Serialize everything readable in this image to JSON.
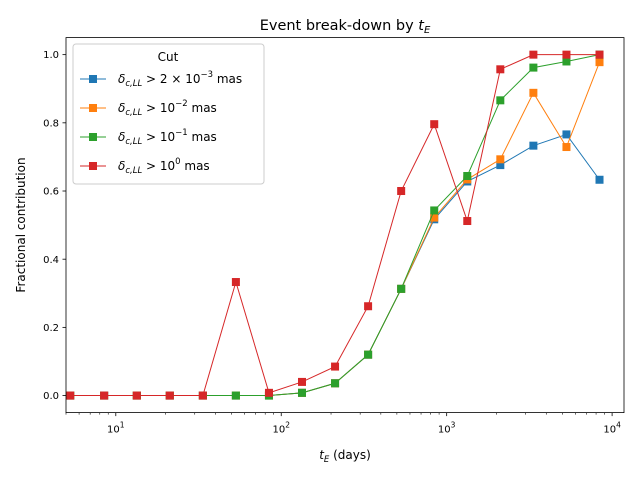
{
  "chart_data": {
    "type": "line",
    "title_prefix": "Event break-down by ",
    "title_var": "t",
    "title_sub": "E",
    "xlabel_var": "t",
    "xlabel_sub": "E",
    "xlabel_suffix": " (days)",
    "ylabel": "Fractional contribution",
    "xscale": "log",
    "xlim": [
      5.0,
      11800
    ],
    "ylim": [
      -0.05,
      1.05
    ],
    "x_major_ticks": [
      {
        "value": 10,
        "base": "10",
        "exp": "1"
      },
      {
        "value": 100,
        "base": "10",
        "exp": "2"
      },
      {
        "value": 1000,
        "base": "10",
        "exp": "3"
      },
      {
        "value": 10000,
        "base": "10",
        "exp": "4"
      }
    ],
    "y_ticks": [
      {
        "value": 0.0,
        "label": "0.0"
      },
      {
        "value": 0.2,
        "label": "0.2"
      },
      {
        "value": 0.4,
        "label": "0.4"
      },
      {
        "value": 0.6,
        "label": "0.6"
      },
      {
        "value": 0.8,
        "label": "0.8"
      },
      {
        "value": 1.0,
        "label": "1.0"
      }
    ],
    "legend": {
      "title": "Cut",
      "placement": "top-left",
      "entries": [
        {
          "sym": "δ",
          "sub": "c,LL",
          "rel": " > 2 × 10",
          "exp": "−3",
          "unit": " mas"
        },
        {
          "sym": "δ",
          "sub": "c,LL",
          "rel": " > 10",
          "exp": "−2",
          "unit": " mas"
        },
        {
          "sym": "δ",
          "sub": "c,LL",
          "rel": " > 10",
          "exp": "−1",
          "unit": " mas"
        },
        {
          "sym": "δ",
          "sub": "c,LL",
          "rel": " > 10",
          "exp": "0",
          "unit": " mas"
        }
      ]
    },
    "x": [
      5.3,
      8.5,
      13.4,
      21.2,
      33.6,
      53.2,
      84.3,
      133.5,
      211.5,
      335.0,
      530.8,
      841.0,
      1332.0,
      2110.0,
      3343.0,
      5297.0,
      8392.0
    ],
    "series": [
      {
        "name": "δc,LL > 2×10^-3 mas",
        "color": "#1f77b4",
        "values": [
          0,
          0,
          0,
          0,
          0,
          0,
          0,
          0.008,
          0.036,
          0.12,
          0.313,
          0.517,
          0.628,
          0.676,
          0.733,
          0.766,
          0.633
        ]
      },
      {
        "name": "δc,LL > 10^-2 mas",
        "color": "#ff7f0e",
        "values": [
          0,
          0,
          0,
          0,
          0,
          0,
          0,
          0.008,
          0.036,
          0.12,
          0.313,
          0.522,
          0.634,
          0.693,
          0.888,
          0.729,
          0.978
        ]
      },
      {
        "name": "δc,LL > 10^-1 mas",
        "color": "#2ca02c",
        "values": [
          0,
          0,
          0,
          0,
          0,
          0,
          0,
          0.008,
          0.036,
          0.12,
          0.313,
          0.543,
          0.644,
          0.866,
          0.962,
          0.98,
          1.0
        ]
      },
      {
        "name": "δc,LL > 10^0 mas",
        "color": "#d62728",
        "values": [
          0,
          0,
          0,
          0,
          0,
          0.333,
          0.008,
          0.04,
          0.085,
          0.262,
          0.6,
          0.796,
          0.512,
          0.957,
          1.0,
          1.0,
          1.0
        ]
      }
    ]
  }
}
